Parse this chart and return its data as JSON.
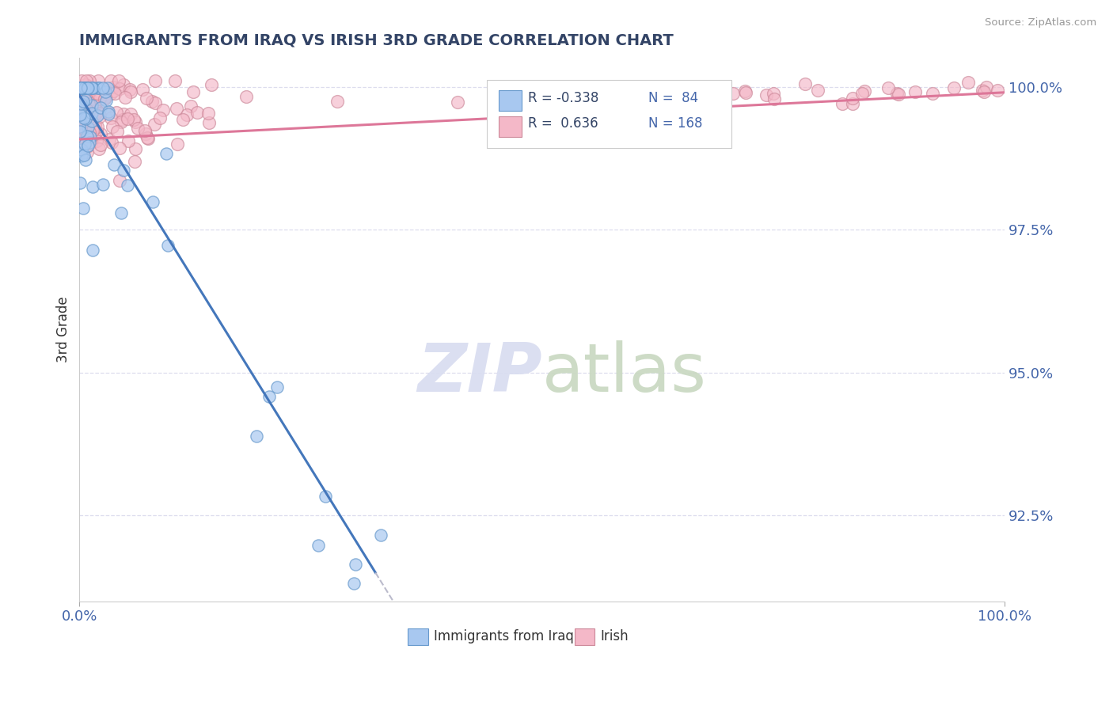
{
  "title": "IMMIGRANTS FROM IRAQ VS IRISH 3RD GRADE CORRELATION CHART",
  "source_text": "Source: ZipAtlas.com",
  "ylabel": "3rd Grade",
  "iraq_color": "#A8C8F0",
  "irish_color": "#F4B8C8",
  "iraq_edge_color": "#6699CC",
  "irish_edge_color": "#CC8899",
  "iraq_line_color": "#4477BB",
  "irish_line_color": "#DD7799",
  "dashed_line_color": "#BBBBCC",
  "watermark_color": "#D8DCF0",
  "background_color": "#FFFFFF",
  "title_color": "#334466",
  "axis_label_color": "#4466AA",
  "right_label_color": "#4466AA",
  "legend_r_color": "#334466",
  "legend_n_color": "#4466AA",
  "grid_color": "#DDDDEE",
  "xmin": 0.0,
  "xmax": 1.0,
  "ymin": 0.91,
  "ymax": 1.005,
  "ytick_positions": [
    1.0,
    0.975,
    0.95,
    0.925
  ],
  "ytick_labels": [
    "100.0%",
    "97.5%",
    "95.0%",
    "92.5%"
  ]
}
